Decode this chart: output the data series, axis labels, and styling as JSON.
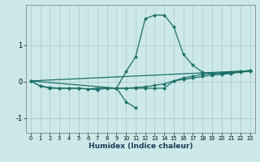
{
  "xlabel": "Humidex (Indice chaleur)",
  "ylabel": "",
  "background_color": "#cce8e8",
  "grid_color": "#aacaca",
  "line_color": "#1a7068",
  "xlim": [
    -0.5,
    23.5
  ],
  "ylim": [
    -1.4,
    2.1
  ],
  "yticks": [
    -1,
    0,
    1
  ],
  "xticks": [
    0,
    1,
    2,
    3,
    4,
    5,
    6,
    7,
    8,
    9,
    10,
    11,
    12,
    13,
    14,
    15,
    16,
    17,
    18,
    19,
    20,
    21,
    22,
    23
  ],
  "series": [
    {
      "x": [
        0,
        1,
        2,
        3,
        4,
        5,
        6,
        7,
        8,
        9,
        10,
        11,
        12,
        13,
        14,
        15,
        16,
        17,
        18,
        19,
        20,
        21,
        22,
        23
      ],
      "y": [
        0.02,
        -0.12,
        -0.18,
        -0.18,
        -0.18,
        -0.18,
        -0.2,
        -0.18,
        -0.18,
        -0.18,
        -0.18,
        -0.18,
        -0.18,
        -0.18,
        -0.18,
        0.02,
        0.1,
        0.15,
        0.2,
        0.22,
        0.24,
        0.26,
        0.28,
        0.3
      ]
    },
    {
      "x": [
        0,
        1,
        2,
        3,
        4,
        5,
        6,
        7,
        8,
        9,
        10,
        11,
        12,
        13,
        14,
        15,
        16,
        17,
        18,
        19,
        20,
        21,
        22,
        23
      ],
      "y": [
        0.02,
        -0.12,
        -0.16,
        -0.18,
        -0.18,
        -0.18,
        -0.2,
        -0.22,
        -0.18,
        -0.18,
        -0.18,
        -0.16,
        -0.14,
        -0.1,
        -0.06,
        0.02,
        0.06,
        0.1,
        0.14,
        0.18,
        0.2,
        0.22,
        0.26,
        0.28
      ]
    },
    {
      "x": [
        0,
        23
      ],
      "y": [
        0.02,
        0.3
      ]
    },
    {
      "x": [
        0,
        9,
        10,
        11,
        12,
        13,
        14,
        15,
        16,
        17,
        18,
        19,
        20,
        21,
        22,
        23
      ],
      "y": [
        0.02,
        -0.18,
        0.28,
        0.68,
        1.72,
        1.82,
        1.82,
        1.5,
        0.75,
        0.45,
        0.26,
        0.22,
        0.22,
        0.24,
        0.28,
        0.3
      ]
    },
    {
      "x": [
        9,
        10,
        11
      ],
      "y": [
        -0.18,
        -0.55,
        -0.72
      ]
    }
  ],
  "marker": "D",
  "markersize": 2.0,
  "linewidth": 0.9
}
